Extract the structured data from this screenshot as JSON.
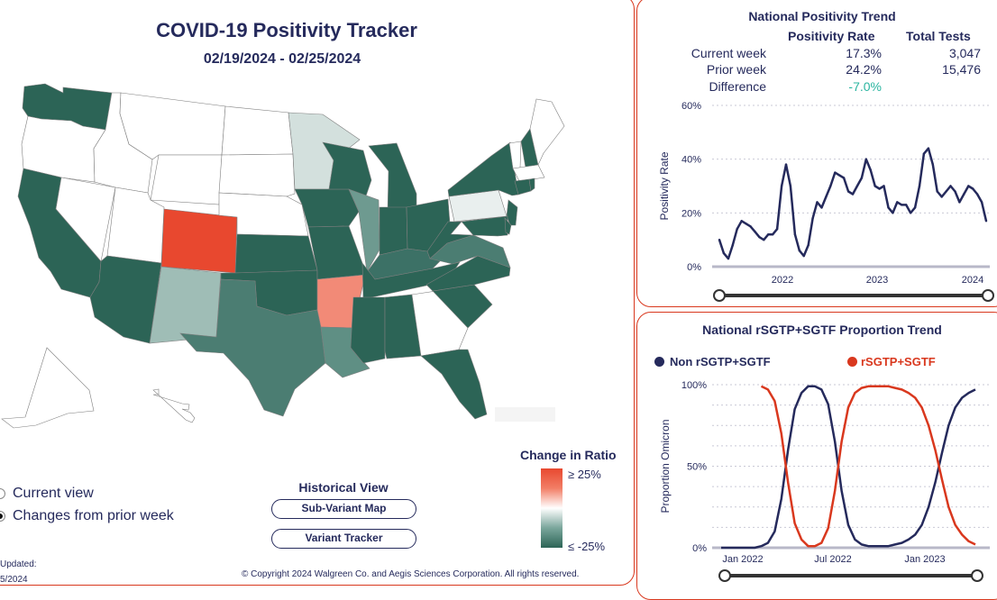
{
  "header": {
    "title": "COVID-19 Positivity Tracker",
    "date_range": "02/19/2024 - 02/25/2024"
  },
  "view_toggle": {
    "options": [
      "Current view",
      "Changes from prior week"
    ],
    "selected": "Changes from prior week"
  },
  "historical": {
    "title": "Historical View",
    "buttons": [
      "Sub-Variant Map",
      "Variant Tracker"
    ]
  },
  "legend": {
    "title": "Change in Ratio",
    "high_label": "≥ 25%",
    "low_label": "≤ -25%",
    "colors": [
      "#e8482f",
      "#f27e66",
      "#ffffff",
      "#7aa69c",
      "#2c6456"
    ]
  },
  "updated": {
    "label": "Updated:",
    "date_fragment": "5/2024"
  },
  "copyright": "© Copyright 2024 Walgreen Co. and Aegis Sciences Corporation. All rights reserved.",
  "map": {
    "state_colors": {
      "WA": "#2c6456",
      "OR": "#ffffff",
      "CA": "#2c6456",
      "NV": "#ffffff",
      "ID": "#ffffff",
      "MT": "#ffffff",
      "WY": "#ffffff",
      "UT": "#ffffff",
      "AZ": "#2c6456",
      "CO": "#e8482f",
      "NM": "#9fbdb6",
      "ND": "#ffffff",
      "SD": "#ffffff",
      "NE": "#ffffff",
      "KS": "#2c6456",
      "OK": "#2c6456",
      "TX": "#4b7d72",
      "MN": "#d3e0dd",
      "IA": "#2c6456",
      "MO": "#2c6456",
      "AR": "#f28a77",
      "LA": "#5f8f84",
      "WI": "#2c6456",
      "IL": "#6e9a90",
      "MI": "#2c6456",
      "IN": "#2c6456",
      "OH": "#2c6456",
      "KY": "#3c7166",
      "TN": "#2c6456",
      "MS": "#2c6456",
      "AL": "#2c6456",
      "GA": "#ffffff",
      "FL": "#2c6456",
      "SC": "#2c6456",
      "NC": "#2c6456",
      "VA": "#4b7d72",
      "WV": "#2c6456",
      "PA": "#e9efee",
      "NY": "#2c6456",
      "NJ": "#2c6456",
      "MD": "#2c6456",
      "DE": "#2c6456",
      "VT": "#ffffff",
      "NH": "#2c6456",
      "ME": "#ffffff",
      "MA": "#ffffff",
      "CT": "#2c6456",
      "RI": "#2c6456",
      "AK": "#ffffff",
      "HI": "#ffffff"
    }
  },
  "positivity": {
    "title": "National Positivity Trend",
    "col_headers": [
      "Positivity Rate",
      "Total Tests"
    ],
    "rows": [
      {
        "label": "Current week",
        "rate": "17.3%",
        "tests": "3,047"
      },
      {
        "label": "Prior week",
        "rate": "24.2%",
        "tests": "15,476"
      },
      {
        "label": "Difference",
        "rate": "-7.0%",
        "tests": ""
      }
    ],
    "difference_color": "#2bb5a0",
    "ylabel": "Positivity Rate",
    "y_ticks": [
      "0%",
      "20%",
      "40%",
      "60%"
    ],
    "x_ticks": [
      "2022",
      "2023",
      "2024"
    ],
    "line_color": "#252a5c"
  },
  "omicron": {
    "title": "National rSGTP+SGTF Proportion Trend",
    "legend": [
      {
        "name": "Non rSGTP+SGTF",
        "color": "#252a5c"
      },
      {
        "name": "rSGTP+SGTF",
        "color": "#d9381e"
      }
    ],
    "ylabel": "Proportion Omicron",
    "y_ticks": [
      "0%",
      "50%",
      "100%"
    ],
    "x_ticks": [
      "Jan 2022",
      "Jul 2022",
      "Jan 2023"
    ]
  },
  "chart_data": [
    {
      "type": "line",
      "title": "National Positivity Trend",
      "ylabel": "Positivity Rate",
      "ylim": [
        0,
        60
      ],
      "x_ticks": [
        "2022",
        "2023",
        "2024"
      ],
      "series": [
        {
          "values": [
            10,
            5,
            3,
            8,
            14,
            17,
            16,
            15,
            13,
            11,
            10,
            12,
            12,
            14,
            30,
            38,
            30,
            12,
            6,
            4,
            8,
            18,
            24,
            22,
            26,
            30,
            35,
            34,
            33,
            28,
            27,
            30,
            33,
            40,
            36,
            30,
            29,
            30,
            22,
            20,
            24,
            23,
            23,
            20,
            22,
            30,
            42,
            44,
            38,
            28,
            26,
            28,
            30,
            28,
            24,
            27,
            30,
            29,
            27,
            24,
            17
          ]
        }
      ]
    },
    {
      "type": "line",
      "title": "National rSGTP+SGTF Proportion Trend",
      "ylabel": "Proportion Omicron",
      "ylim": [
        0,
        100
      ],
      "x_ticks": [
        "Jan 2022",
        "Jul 2022",
        "Jan 2023"
      ],
      "series": [
        {
          "name": "Non rSGTP+SGTF",
          "values": [
            0,
            0,
            0,
            0,
            0,
            0,
            1,
            3,
            10,
            30,
            60,
            85,
            95,
            99,
            99,
            97,
            88,
            65,
            35,
            14,
            5,
            2,
            1,
            1,
            1,
            1,
            2,
            3,
            5,
            8,
            14,
            25,
            40,
            58,
            75,
            86,
            92,
            95,
            97
          ]
        },
        {
          "name": "rSGTP+SGTF",
          "values": [
            0,
            0,
            0,
            0,
            0,
            0,
            99,
            97,
            90,
            70,
            40,
            15,
            5,
            1,
            1,
            3,
            12,
            35,
            65,
            86,
            95,
            98,
            99,
            99,
            99,
            99,
            98,
            97,
            95,
            92,
            86,
            75,
            60,
            42,
            25,
            14,
            8,
            4,
            2
          ]
        }
      ]
    }
  ]
}
